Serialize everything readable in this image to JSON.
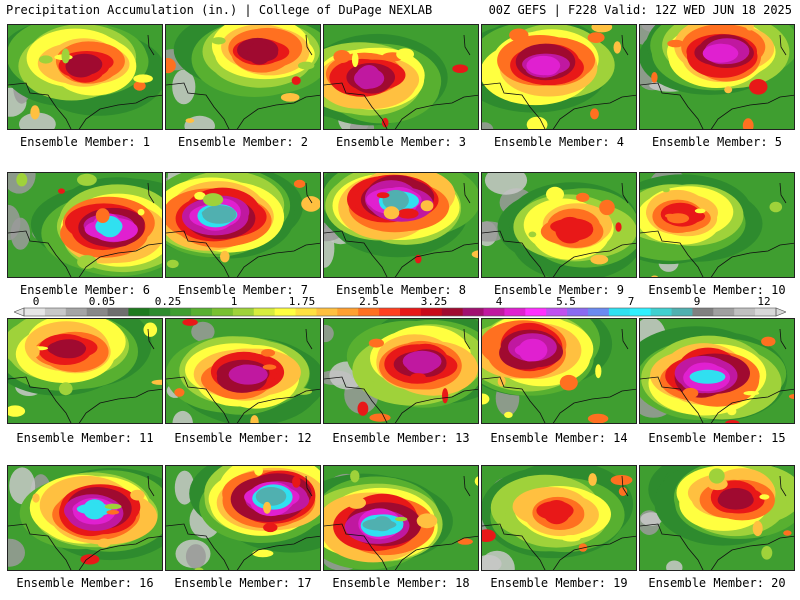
{
  "header": {
    "title": "Precipitation Accumulation (in.) | College of DuPage NEXLAB",
    "run_info": "00Z GEFS | F228 Valid: 12Z WED JUN 18 2025"
  },
  "colorbar": {
    "tick_labels": [
      "0",
      "0.05",
      "0.25",
      "1",
      "1.75",
      "2.5",
      "3.25",
      "4",
      "5.5",
      "7",
      "9",
      "12"
    ],
    "colors": [
      "#e6e6e6",
      "#c8c8c8",
      "#a5a5a5",
      "#888888",
      "#6e6e6e",
      "#1e7a1e",
      "#2e8b2e",
      "#3f9e30",
      "#58b030",
      "#78c030",
      "#9fd23a",
      "#d7ec3e",
      "#ffff40",
      "#ffe040",
      "#ffc040",
      "#ffa030",
      "#ff7020",
      "#ff4020",
      "#e81818",
      "#c80a1a",
      "#a00a30",
      "#a01070",
      "#c018a0",
      "#e020d0",
      "#ff30ff",
      "#c050f0",
      "#8a6af0",
      "#6a8af0",
      "#30e0f0",
      "#30f0ff",
      "#40d0d0",
      "#50b0b0",
      "#808080",
      "#a0a0a0",
      "#c0c0c0",
      "#d8d8d8"
    ]
  },
  "members": [
    {
      "label": "Ensemble Member: 1"
    },
    {
      "label": "Ensemble Member: 2"
    },
    {
      "label": "Ensemble Member: 3"
    },
    {
      "label": "Ensemble Member: 4"
    },
    {
      "label": "Ensemble Member: 5"
    },
    {
      "label": "Ensemble Member: 6"
    },
    {
      "label": "Ensemble Member: 7"
    },
    {
      "label": "Ensemble Member: 8"
    },
    {
      "label": "Ensemble Member: 9"
    },
    {
      "label": "Ensemble Member: 10"
    },
    {
      "label": "Ensemble Member: 11"
    },
    {
      "label": "Ensemble Member: 12"
    },
    {
      "label": "Ensemble Member: 13"
    },
    {
      "label": "Ensemble Member: 14"
    },
    {
      "label": "Ensemble Member: 15"
    },
    {
      "label": "Ensemble Member: 16"
    },
    {
      "label": "Ensemble Member: 17"
    },
    {
      "label": "Ensemble Member: 18"
    },
    {
      "label": "Ensemble Member: 19"
    },
    {
      "label": "Ensemble Member: 20"
    }
  ]
}
